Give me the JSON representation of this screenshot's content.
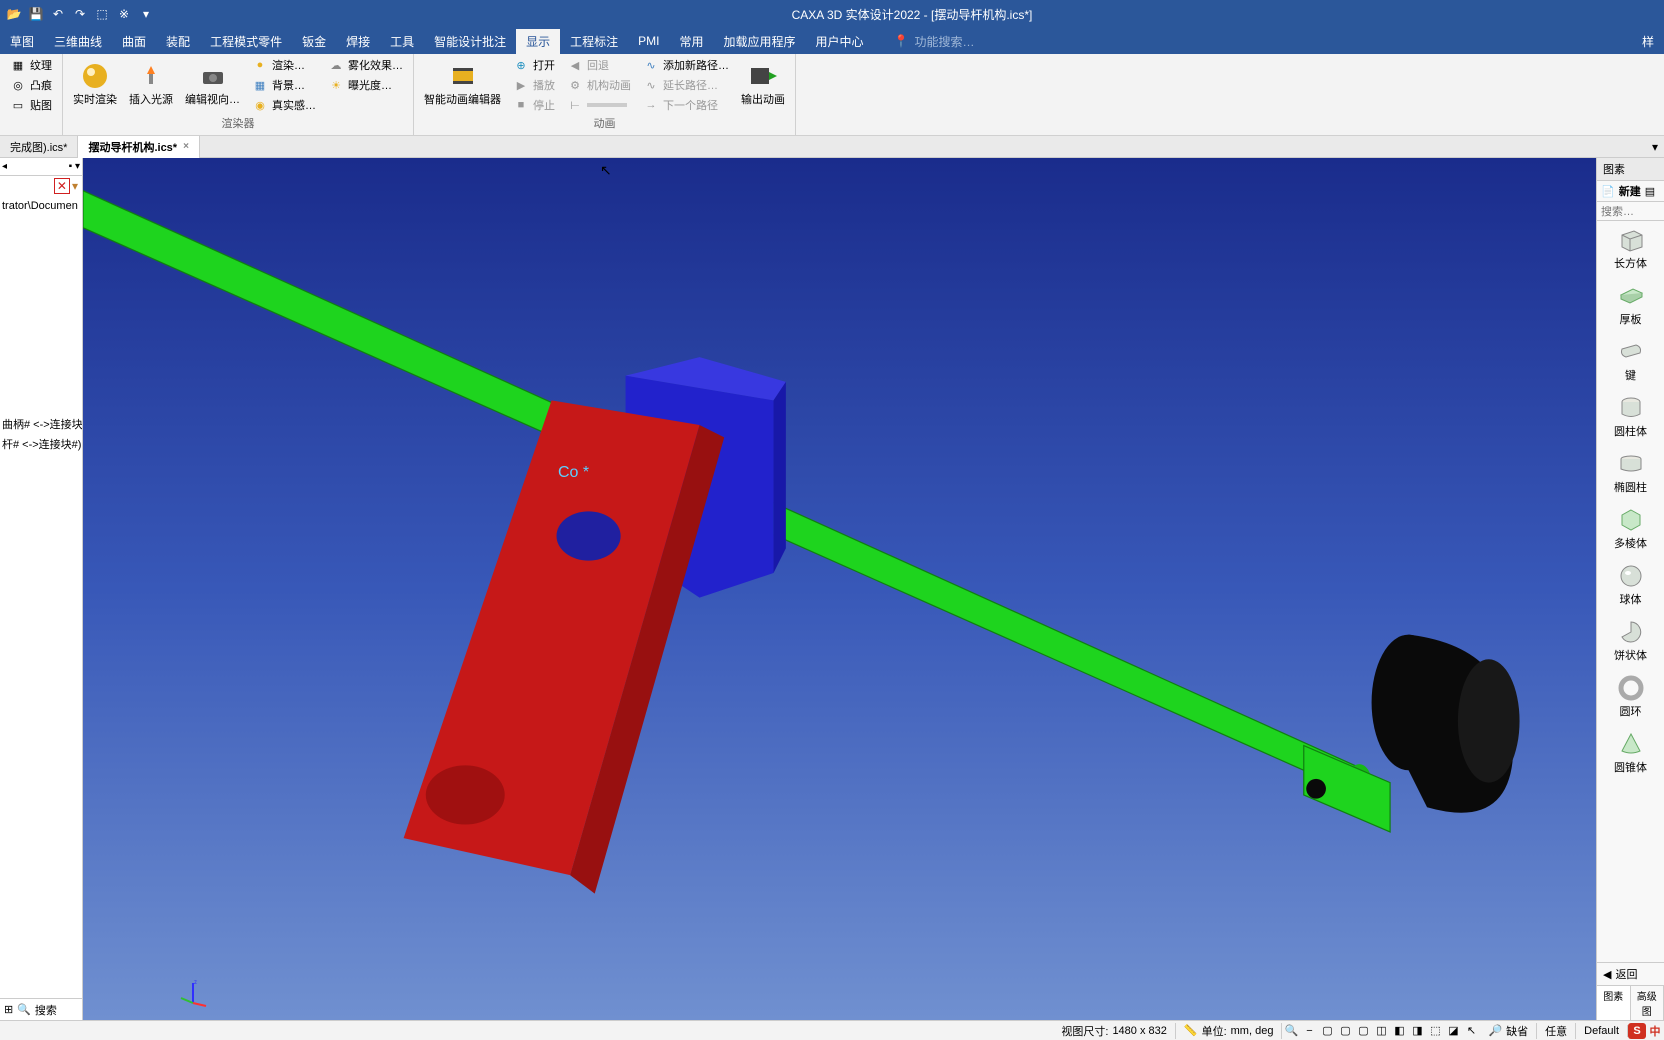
{
  "app": {
    "title": "CAXA 3D 实体设计2022 - [摆动导杆机构.ics*]"
  },
  "qat": {
    "open": "📂",
    "save": "💾",
    "undo": "↶",
    "redo": "↷",
    "more1": "⬚",
    "more2": "※"
  },
  "menu": {
    "items": [
      "草图",
      "三维曲线",
      "曲面",
      "装配",
      "工程模式零件",
      "钣金",
      "焊接",
      "工具",
      "智能设计批注",
      "显示",
      "工程标注",
      "PMI",
      "常用",
      "加载应用程序",
      "用户中心"
    ],
    "active_index": 9,
    "search_placeholder": "功能搜索…",
    "right_label": "样"
  },
  "ribbon": {
    "group0": {
      "items": [
        "纹理",
        "凸痕",
        "贴图"
      ]
    },
    "group1": {
      "label": "渲染器",
      "realtime": "实时渲染",
      "light": "插入光源",
      "orient": "编辑视向…",
      "render_opt": "渲染…",
      "background": "背景…",
      "realistic": "真实感…",
      "fog": "雾化效果…",
      "exposure": "曝光度…"
    },
    "group2": {
      "label": "动画",
      "editor": "智能动画编辑器",
      "open": "打开",
      "play": "播放",
      "stop": "停止",
      "back": "回退",
      "mech": "机构动画",
      "addpath": "添加新路径…",
      "extpath": "延长路径…",
      "nextpath": "下一个路径",
      "export": "输出动画"
    }
  },
  "doctabs": {
    "tab0": "完成图).ics*",
    "tab1": "摆动导杆机构.ics*"
  },
  "left": {
    "header": "",
    "path": "trator\\Documen",
    "item1": "曲柄# <->连接块#)",
    "item2": "杆# <->连接块#)",
    "search": "搜索"
  },
  "viewport": {
    "co_label": "Co *",
    "colors": {
      "green": "#1ed41e",
      "red": "#c61818",
      "blue": "#2222cc",
      "black": "#0a0a0a",
      "darkblue": "#2020a0",
      "label_cyan": "#5dd0ff"
    }
  },
  "right": {
    "title": "图素",
    "new": "新建",
    "search_placeholder": "搜索…",
    "back": "返回",
    "tab_view": "图素",
    "tab_advanced": "高级图",
    "shapes": [
      {
        "label": "长方体",
        "color": "#d8e0d8"
      },
      {
        "label": "厚板",
        "color": "#c8e8c8"
      },
      {
        "label": "键",
        "color": "#d8e0d8"
      },
      {
        "label": "圆柱体",
        "color": "#d8e0d8"
      },
      {
        "label": "椭圆柱",
        "color": "#d8e0d8"
      },
      {
        "label": "多棱体",
        "color": "#c8e8c8"
      },
      {
        "label": "球体",
        "color": "#d8e0d8"
      },
      {
        "label": "饼状体",
        "color": "#d8e0d8"
      },
      {
        "label": "圆环",
        "color": "#d8d8d8"
      },
      {
        "label": "圆锥体",
        "color": "#c8e8c8"
      }
    ]
  },
  "status": {
    "view_size_label": "视图尺寸:",
    "view_size": "1480 x  832",
    "unit_label": "单位:",
    "unit": "mm, deg",
    "zoom_label": "缺省",
    "mode": "任意",
    "profile": "Default",
    "ime": "中",
    "ime_icon": "S"
  }
}
